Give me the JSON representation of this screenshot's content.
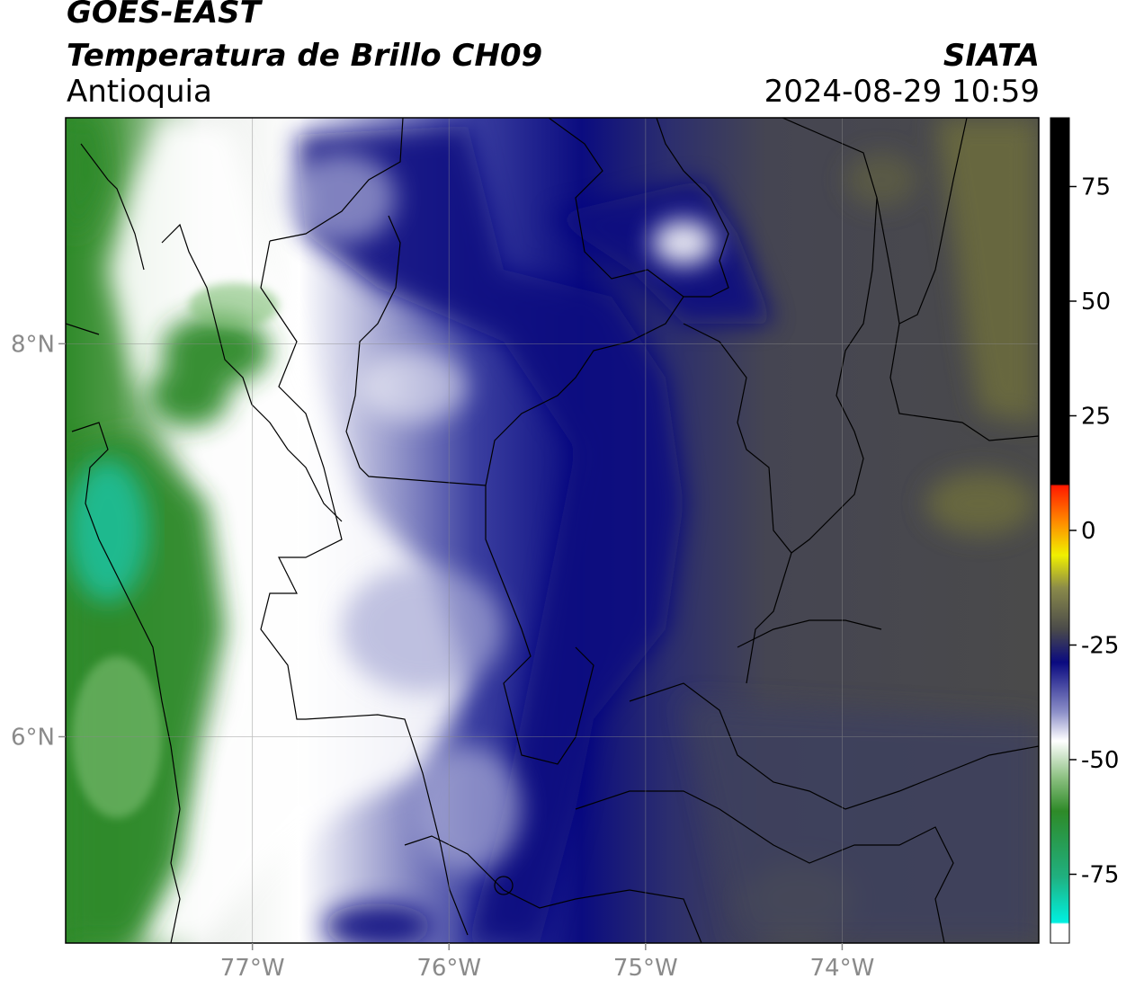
{
  "header": {
    "satellite": "GOES-EAST",
    "product": "Temperatura de Brillo CH09",
    "region": "Antioquia",
    "organization": "SIATA",
    "datetime": "2024-08-29 10:59"
  },
  "map": {
    "lon_range": [
      -77.95,
      -73.0
    ],
    "lat_range": [
      4.95,
      9.15
    ],
    "lon_ticks": [
      {
        "value": -77,
        "label": "77°W"
      },
      {
        "value": -76,
        "label": "76°W"
      },
      {
        "value": -75,
        "label": "75°W"
      },
      {
        "value": -74,
        "label": "74°W"
      }
    ],
    "lat_ticks": [
      {
        "value": 8,
        "label": "8°N"
      },
      {
        "value": 6,
        "label": "6°N"
      }
    ]
  },
  "colorbar": {
    "range": [
      -90,
      90
    ],
    "ticks": [
      {
        "value": 75,
        "label": "75"
      },
      {
        "value": 50,
        "label": "50"
      },
      {
        "value": 25,
        "label": "25"
      },
      {
        "value": 0,
        "label": "0"
      },
      {
        "value": -25,
        "label": "-25"
      },
      {
        "value": -50,
        "label": "-50"
      },
      {
        "value": -75,
        "label": "-75"
      }
    ]
  },
  "colors": {
    "warm_gray": "#4a4a4a",
    "olive": "#6d6d3c",
    "navy": "#0b0c80",
    "blue": "#3b3fa0",
    "white": "#ffffff",
    "green": "#2f8a2a",
    "teal": "#1fc2a0"
  }
}
